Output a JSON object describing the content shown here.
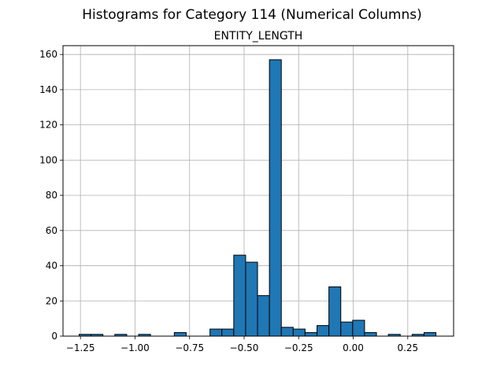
{
  "figure": {
    "suptitle": "Histograms for Category 114 (Numerical Columns)"
  },
  "chart_data": {
    "type": "bar",
    "title": "ENTITY_LENGTH",
    "xlabel": "",
    "ylabel": "",
    "xlim": [
      -1.33,
      0.46
    ],
    "ylim": [
      0,
      165
    ],
    "xticks": [
      -1.25,
      -1.0,
      -0.75,
      -0.5,
      -0.25,
      0.0,
      0.25
    ],
    "xtick_labels": [
      "−1.25",
      "−1.00",
      "−0.75",
      "−0.50",
      "−0.25",
      "0.00",
      "0.25"
    ],
    "yticks": [
      0,
      20,
      40,
      60,
      80,
      100,
      120,
      140,
      160
    ],
    "ytick_labels": [
      "0",
      "20",
      "40",
      "60",
      "80",
      "100",
      "120",
      "140",
      "160"
    ],
    "grid": true,
    "bar_color": "#1f77b4",
    "edge_color": "#000000",
    "bin_width": 0.0545,
    "bin_starts": [
      -1.256,
      -1.2015,
      -1.147,
      -1.0925,
      -1.038,
      -0.9835,
      -0.929,
      -0.8745,
      -0.82,
      -0.7655,
      -0.711,
      -0.6565,
      -0.602,
      -0.5475,
      -0.493,
      -0.4385,
      -0.384,
      -0.3295,
      -0.275,
      -0.2205,
      -0.166,
      -0.1115,
      -0.057,
      -0.0025,
      0.052,
      0.1065,
      0.161,
      0.2155,
      0.27,
      0.3245
    ],
    "values": [
      1,
      1,
      0,
      1,
      0,
      1,
      0,
      0,
      2,
      0,
      0,
      4,
      4,
      46,
      42,
      23,
      157,
      5,
      4,
      2,
      6,
      28,
      8,
      9,
      2,
      0,
      1,
      0,
      1,
      2
    ]
  }
}
